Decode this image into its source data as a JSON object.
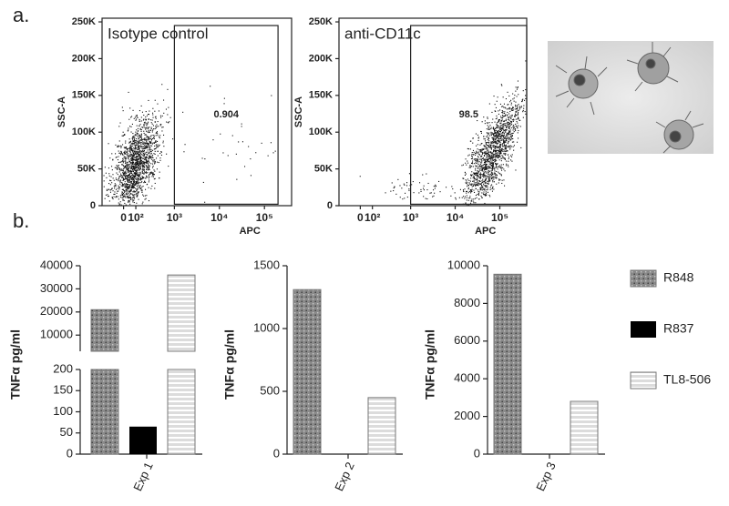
{
  "panels": [
    "a.",
    "b."
  ],
  "chart_data": [
    {
      "type": "scatter",
      "title": "Isotype control",
      "x_label": "APC",
      "y_label": "SSC-A",
      "xscale": "biexponential",
      "xlim": [
        -200,
        400000
      ],
      "xticks": [
        0,
        {
          "value": 100,
          "label": "10²"
        },
        {
          "value": 1000,
          "label": "10³"
        },
        {
          "value": 10000,
          "label": "10⁴"
        },
        {
          "value": 100000,
          "label": "10⁵"
        }
      ],
      "ylim": [
        0,
        255000
      ],
      "yticks": [
        0,
        {
          "value": 50000,
          "label": "50K"
        },
        {
          "value": 100000,
          "label": "100K"
        },
        {
          "value": 150000,
          "label": "150K"
        },
        {
          "value": 200000,
          "label": "200K"
        },
        {
          "value": 250000,
          "label": "250K"
        }
      ],
      "gate": {
        "xlim": [
          1000,
          200000
        ],
        "ylim": [
          2000,
          245000
        ],
        "label": "0.904"
      }
    },
    {
      "type": "scatter",
      "title": "anti-CD11c",
      "x_label": "APC",
      "y_label": "SSC-A",
      "xscale": "biexponential",
      "xlim": [
        -200,
        400000
      ],
      "xticks": [
        0,
        {
          "value": 100,
          "label": "10²"
        },
        {
          "value": 1000,
          "label": "10³"
        },
        {
          "value": 10000,
          "label": "10⁴"
        },
        {
          "value": 100000,
          "label": "10⁵"
        }
      ],
      "ylim": [
        0,
        255000
      ],
      "yticks": [
        0,
        {
          "value": 50000,
          "label": "50K"
        },
        {
          "value": 100000,
          "label": "100K"
        },
        {
          "value": 150000,
          "label": "150K"
        },
        {
          "value": 200000,
          "label": "200K"
        },
        {
          "value": 250000,
          "label": "250K"
        }
      ],
      "gate": {
        "xlim": [
          1000,
          400000
        ],
        "ylim": [
          2000,
          245000
        ],
        "label": "98.5"
      }
    },
    {
      "type": "bar",
      "y_label": "TNFα pg/ml",
      "categories": [
        "Exp 1"
      ],
      "series": [
        {
          "name": "R848",
          "color": "#8a8a8a",
          "pattern": "dots",
          "values": [
            21000
          ]
        },
        {
          "name": "R837",
          "color": "#000000",
          "pattern": "solid",
          "values": [
            65
          ]
        },
        {
          "name": "TL8-506",
          "color": "#dcdcdc",
          "pattern": "stripes",
          "values": [
            36000
          ]
        }
      ],
      "ylim": [
        0,
        200
      ],
      "yticks": [
        0,
        50,
        100,
        150,
        200
      ],
      "y_break": {
        "ylim": [
          3000,
          40000
        ],
        "yticks": [
          10000,
          20000,
          30000,
          40000
        ]
      }
    },
    {
      "type": "bar",
      "y_label": "TNFα pg/ml",
      "categories": [
        "Exp 2"
      ],
      "series": [
        {
          "name": "R848",
          "color": "#8a8a8a",
          "pattern": "dots",
          "values": [
            1310
          ]
        },
        {
          "name": "R837",
          "color": "#000000",
          "pattern": "solid",
          "values": [
            0
          ]
        },
        {
          "name": "TL8-506",
          "color": "#dcdcdc",
          "pattern": "stripes",
          "values": [
            450
          ]
        }
      ],
      "ylim": [
        0,
        1500
      ],
      "yticks": [
        0,
        500,
        1000,
        1500
      ]
    },
    {
      "type": "bar",
      "y_label": "TNFα pg/ml",
      "categories": [
        "Exp 3"
      ],
      "series": [
        {
          "name": "R848",
          "color": "#8a8a8a",
          "pattern": "dots",
          "values": [
            9550
          ]
        },
        {
          "name": "R837",
          "color": "#000000",
          "pattern": "solid",
          "values": [
            0
          ]
        },
        {
          "name": "TL8-506",
          "color": "#dcdcdc",
          "pattern": "stripes",
          "values": [
            2800
          ]
        }
      ],
      "ylim": [
        0,
        10000
      ],
      "yticks": [
        0,
        2000,
        4000,
        6000,
        8000,
        10000
      ],
      "legend": "right"
    }
  ]
}
